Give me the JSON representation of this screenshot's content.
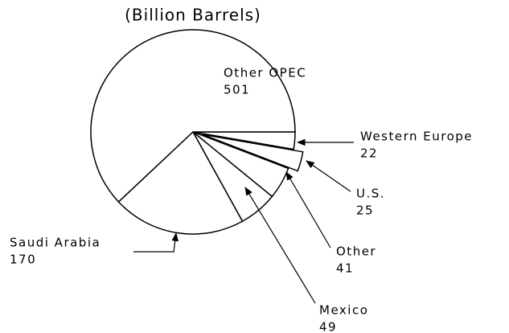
{
  "chart_data": {
    "type": "pie",
    "title": "(Billion Barrels)",
    "categories": [
      "Western Europe",
      "U.S.",
      "Other",
      "Mexico",
      "Saudi Arabia",
      "Other OPEC"
    ],
    "values": [
      22,
      25,
      41,
      49,
      170,
      501
    ],
    "exploded": [
      "U.S."
    ],
    "color": "#ffffff"
  }
}
